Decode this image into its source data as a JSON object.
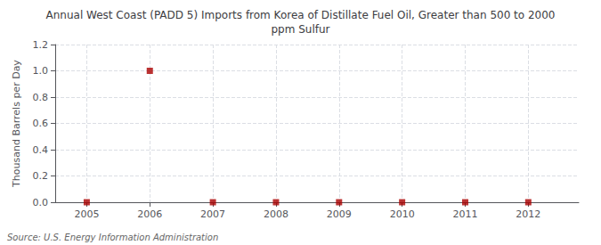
{
  "chart_data": {
    "type": "scatter",
    "title": "Annual West Coast (PADD 5) Imports from Korea of Distillate Fuel Oil, Greater than 500 to 2000\nppm Sulfur",
    "ylabel": "Thousand Barrels per Day",
    "annotation": "Source: U.S. Energy Information Administration",
    "x": [
      2005,
      2006,
      2007,
      2008,
      2009,
      2010,
      2011,
      2012
    ],
    "values": [
      0,
      1.0,
      0,
      0,
      0,
      0,
      0,
      0
    ],
    "xlim": [
      2004.5,
      2012.8
    ],
    "ylim": [
      0,
      1.2
    ],
    "xticks": [
      2005,
      2006,
      2007,
      2008,
      2009,
      2010,
      2011,
      2012
    ],
    "yticks": [
      {
        "value": 0.0,
        "label": "0.0"
      },
      0.2,
      0.4,
      0.6,
      0.8,
      {
        "value": 1.0,
        "label": "1.0"
      },
      1.2
    ],
    "color": "#aa0000",
    "marker": "square",
    "grid": true
  }
}
